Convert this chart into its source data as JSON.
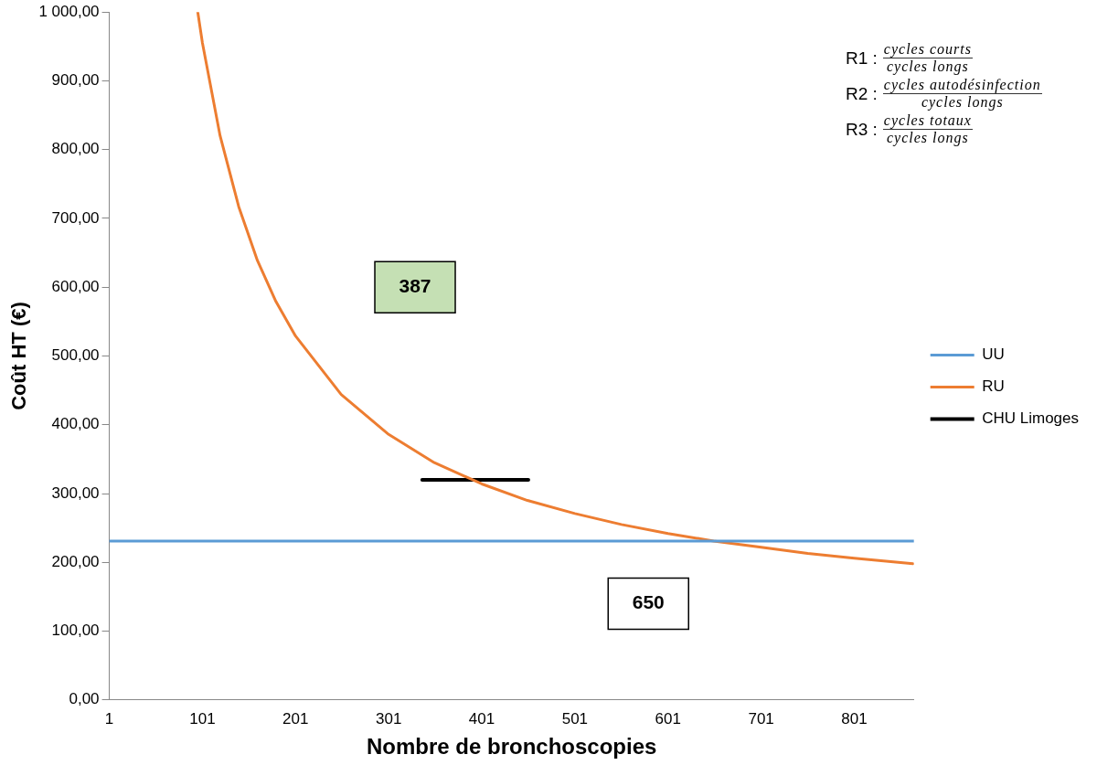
{
  "chart_data": {
    "type": "line",
    "xlabel": "Nombre de bronchoscopies",
    "ylabel": "Coût HT (€)",
    "xlim": [
      1,
      865
    ],
    "xticks": [
      1,
      101,
      201,
      301,
      401,
      501,
      601,
      701,
      801
    ],
    "ylim": [
      0,
      1000
    ],
    "yticks": [
      {
        "value": 0,
        "label": "0,00"
      },
      {
        "value": 100,
        "label": "100,00"
      },
      {
        "value": 200,
        "label": "200,00"
      },
      {
        "value": 300,
        "label": "300,00"
      },
      {
        "value": 400,
        "label": "400,00"
      },
      {
        "value": 500,
        "label": "500,00"
      },
      {
        "value": 600,
        "label": "600,00"
      },
      {
        "value": 700,
        "label": "700,00"
      },
      {
        "value": 800,
        "label": "800,00"
      },
      {
        "value": 900,
        "label": "900,00"
      },
      {
        "value": 1000,
        "label": "1 000,00"
      }
    ],
    "grid": false,
    "legend": "right",
    "marker": "none",
    "series": [
      {
        "name": "UU",
        "color": "#5b9bd5",
        "x": [
          1,
          865
        ],
        "values": [
          231,
          231
        ]
      },
      {
        "name": "RU",
        "color": "#ed7d31",
        "x": [
          96,
          101,
          120,
          140,
          160,
          180,
          201,
          250,
          301,
          350,
          401,
          450,
          501,
          551,
          601,
          650,
          701,
          751,
          801,
          864
        ],
        "values": [
          1000,
          955,
          820,
          717,
          639,
          579,
          529,
          444,
          386,
          345,
          314,
          290,
          271,
          255,
          242,
          231,
          222,
          213,
          206,
          198
        ]
      },
      {
        "name": "CHU Limoges",
        "color": "#000000",
        "x": [
          337,
          451
        ],
        "values": [
          320,
          320
        ]
      }
    ],
    "annotations": [
      "387",
      "650",
      "R1 :",
      "cycles courts",
      "cycles longs",
      "R2 :",
      "cycles autodésinfection",
      "cycles longs",
      "R3 :",
      "cycles totaux",
      "cycles longs"
    ]
  }
}
